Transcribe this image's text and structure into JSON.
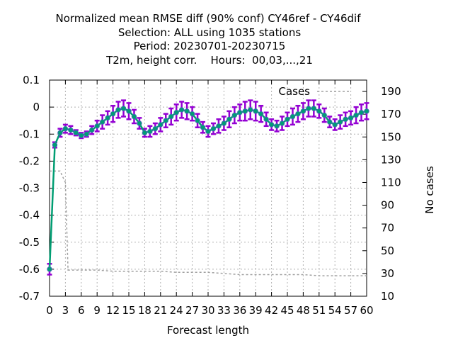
{
  "chart_data": {
    "type": "line",
    "title_lines": [
      "Normalized mean RMSE diff (90% conf) CY46ref - CY46dif",
      "Selection: ALL using  1035 stations",
      "Period: 20230701-20230715",
      "T2m, height corr.    Hours:  00,03,...,21"
    ],
    "xlabel": "Forecast length",
    "ylabel": "",
    "y2label": "No cases",
    "xlim": [
      0,
      60
    ],
    "ylim": [
      -0.7,
      0.1
    ],
    "y2lim": [
      10,
      200
    ],
    "xticks": [
      0,
      3,
      6,
      9,
      12,
      15,
      18,
      21,
      24,
      27,
      30,
      33,
      36,
      39,
      42,
      45,
      48,
      51,
      54,
      57,
      60
    ],
    "yticks": [
      0.1,
      0,
      -0.1,
      -0.2,
      -0.3,
      -0.4,
      -0.5,
      -0.6,
      -0.7
    ],
    "y2ticks": [
      190,
      170,
      150,
      130,
      110,
      90,
      70,
      50,
      30,
      10
    ],
    "grid": true,
    "legend": {
      "entries": [
        "Cases"
      ],
      "position": "top-right"
    },
    "colors": {
      "mean": "#009e73",
      "conf": "#9400d3",
      "cases": "#a0a0a0"
    },
    "diff_series": {
      "x": [
        0,
        1,
        2,
        3,
        4,
        5,
        6,
        7,
        8,
        9,
        10,
        11,
        12,
        13,
        14,
        15,
        16,
        17,
        18,
        19,
        20,
        21,
        22,
        23,
        24,
        25,
        26,
        27,
        28,
        29,
        30,
        31,
        32,
        33,
        34,
        35,
        36,
        37,
        38,
        39,
        40,
        41,
        42,
        43,
        44,
        45,
        46,
        47,
        48,
        49,
        50,
        51,
        52,
        53,
        54,
        55,
        56,
        57,
        58,
        59,
        60
      ],
      "mean": [
        -0.6,
        -0.14,
        -0.095,
        -0.08,
        -0.085,
        -0.095,
        -0.105,
        -0.1,
        -0.085,
        -0.07,
        -0.055,
        -0.04,
        -0.025,
        -0.01,
        -0.005,
        -0.015,
        -0.035,
        -0.06,
        -0.095,
        -0.09,
        -0.08,
        -0.065,
        -0.05,
        -0.035,
        -0.02,
        -0.01,
        -0.015,
        -0.025,
        -0.05,
        -0.075,
        -0.09,
        -0.08,
        -0.07,
        -0.06,
        -0.045,
        -0.03,
        -0.02,
        -0.015,
        -0.01,
        -0.015,
        -0.025,
        -0.045,
        -0.065,
        -0.07,
        -0.06,
        -0.045,
        -0.035,
        -0.025,
        -0.015,
        -0.005,
        -0.005,
        -0.015,
        -0.03,
        -0.055,
        -0.065,
        -0.055,
        -0.045,
        -0.04,
        -0.03,
        -0.02,
        -0.015
      ],
      "halfwidth": [
        0.02,
        0.01,
        0.015,
        0.015,
        0.015,
        0.01,
        0.01,
        0.01,
        0.015,
        0.02,
        0.025,
        0.025,
        0.03,
        0.03,
        0.03,
        0.03,
        0.025,
        0.02,
        0.015,
        0.02,
        0.02,
        0.025,
        0.025,
        0.03,
        0.03,
        0.03,
        0.03,
        0.025,
        0.025,
        0.02,
        0.02,
        0.02,
        0.025,
        0.025,
        0.03,
        0.03,
        0.03,
        0.035,
        0.035,
        0.035,
        0.03,
        0.025,
        0.02,
        0.02,
        0.025,
        0.025,
        0.03,
        0.03,
        0.03,
        0.03,
        0.03,
        0.025,
        0.025,
        0.02,
        0.02,
        0.025,
        0.025,
        0.025,
        0.03,
        0.03,
        0.03
      ]
    },
    "cases_series": {
      "name": "Cases",
      "x": [
        0,
        1,
        2,
        3,
        3.5,
        6,
        9,
        12,
        15,
        18,
        21,
        24,
        27,
        30,
        33,
        36,
        39,
        42,
        45,
        48,
        51,
        54,
        57,
        60
      ],
      "values": [
        120,
        120,
        120,
        110,
        33,
        33,
        33,
        32,
        32,
        32,
        32,
        31,
        31,
        31,
        30,
        29,
        29,
        29,
        29,
        29,
        28,
        28,
        28,
        28
      ]
    }
  }
}
